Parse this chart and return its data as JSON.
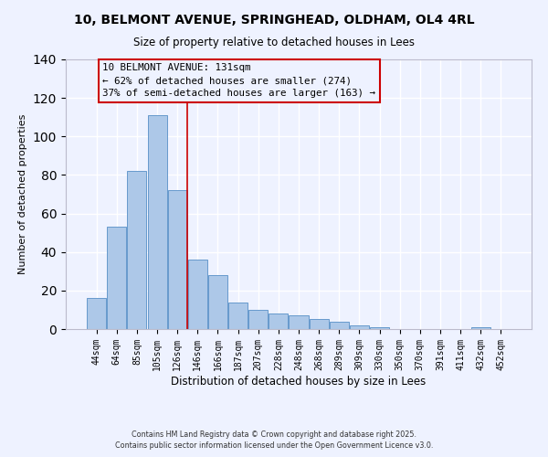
{
  "title": "10, BELMONT AVENUE, SPRINGHEAD, OLDHAM, OL4 4RL",
  "subtitle": "Size of property relative to detached houses in Lees",
  "xlabel": "Distribution of detached houses by size in Lees",
  "ylabel": "Number of detached properties",
  "bar_labels": [
    "44sqm",
    "64sqm",
    "85sqm",
    "105sqm",
    "126sqm",
    "146sqm",
    "166sqm",
    "187sqm",
    "207sqm",
    "228sqm",
    "248sqm",
    "268sqm",
    "289sqm",
    "309sqm",
    "330sqm",
    "350sqm",
    "370sqm",
    "391sqm",
    "411sqm",
    "432sqm",
    "452sqm"
  ],
  "bar_values": [
    16,
    53,
    82,
    111,
    72,
    36,
    28,
    14,
    10,
    8,
    7,
    5,
    4,
    2,
    1,
    0,
    0,
    0,
    0,
    1,
    0
  ],
  "bar_color": "#adc8e8",
  "bar_edge_color": "#6699cc",
  "vline_color": "#cc0000",
  "annotation_title": "10 BELMONT AVENUE: 131sqm",
  "annotation_line1": "← 62% of detached houses are smaller (274)",
  "annotation_line2": "37% of semi-detached houses are larger (163) →",
  "annotation_box_color": "#cc0000",
  "ylim": [
    0,
    140
  ],
  "yticks": [
    0,
    20,
    40,
    60,
    80,
    100,
    120,
    140
  ],
  "footer1": "Contains HM Land Registry data © Crown copyright and database right 2025.",
  "footer2": "Contains public sector information licensed under the Open Government Licence v3.0.",
  "bg_color": "#eef2ff"
}
